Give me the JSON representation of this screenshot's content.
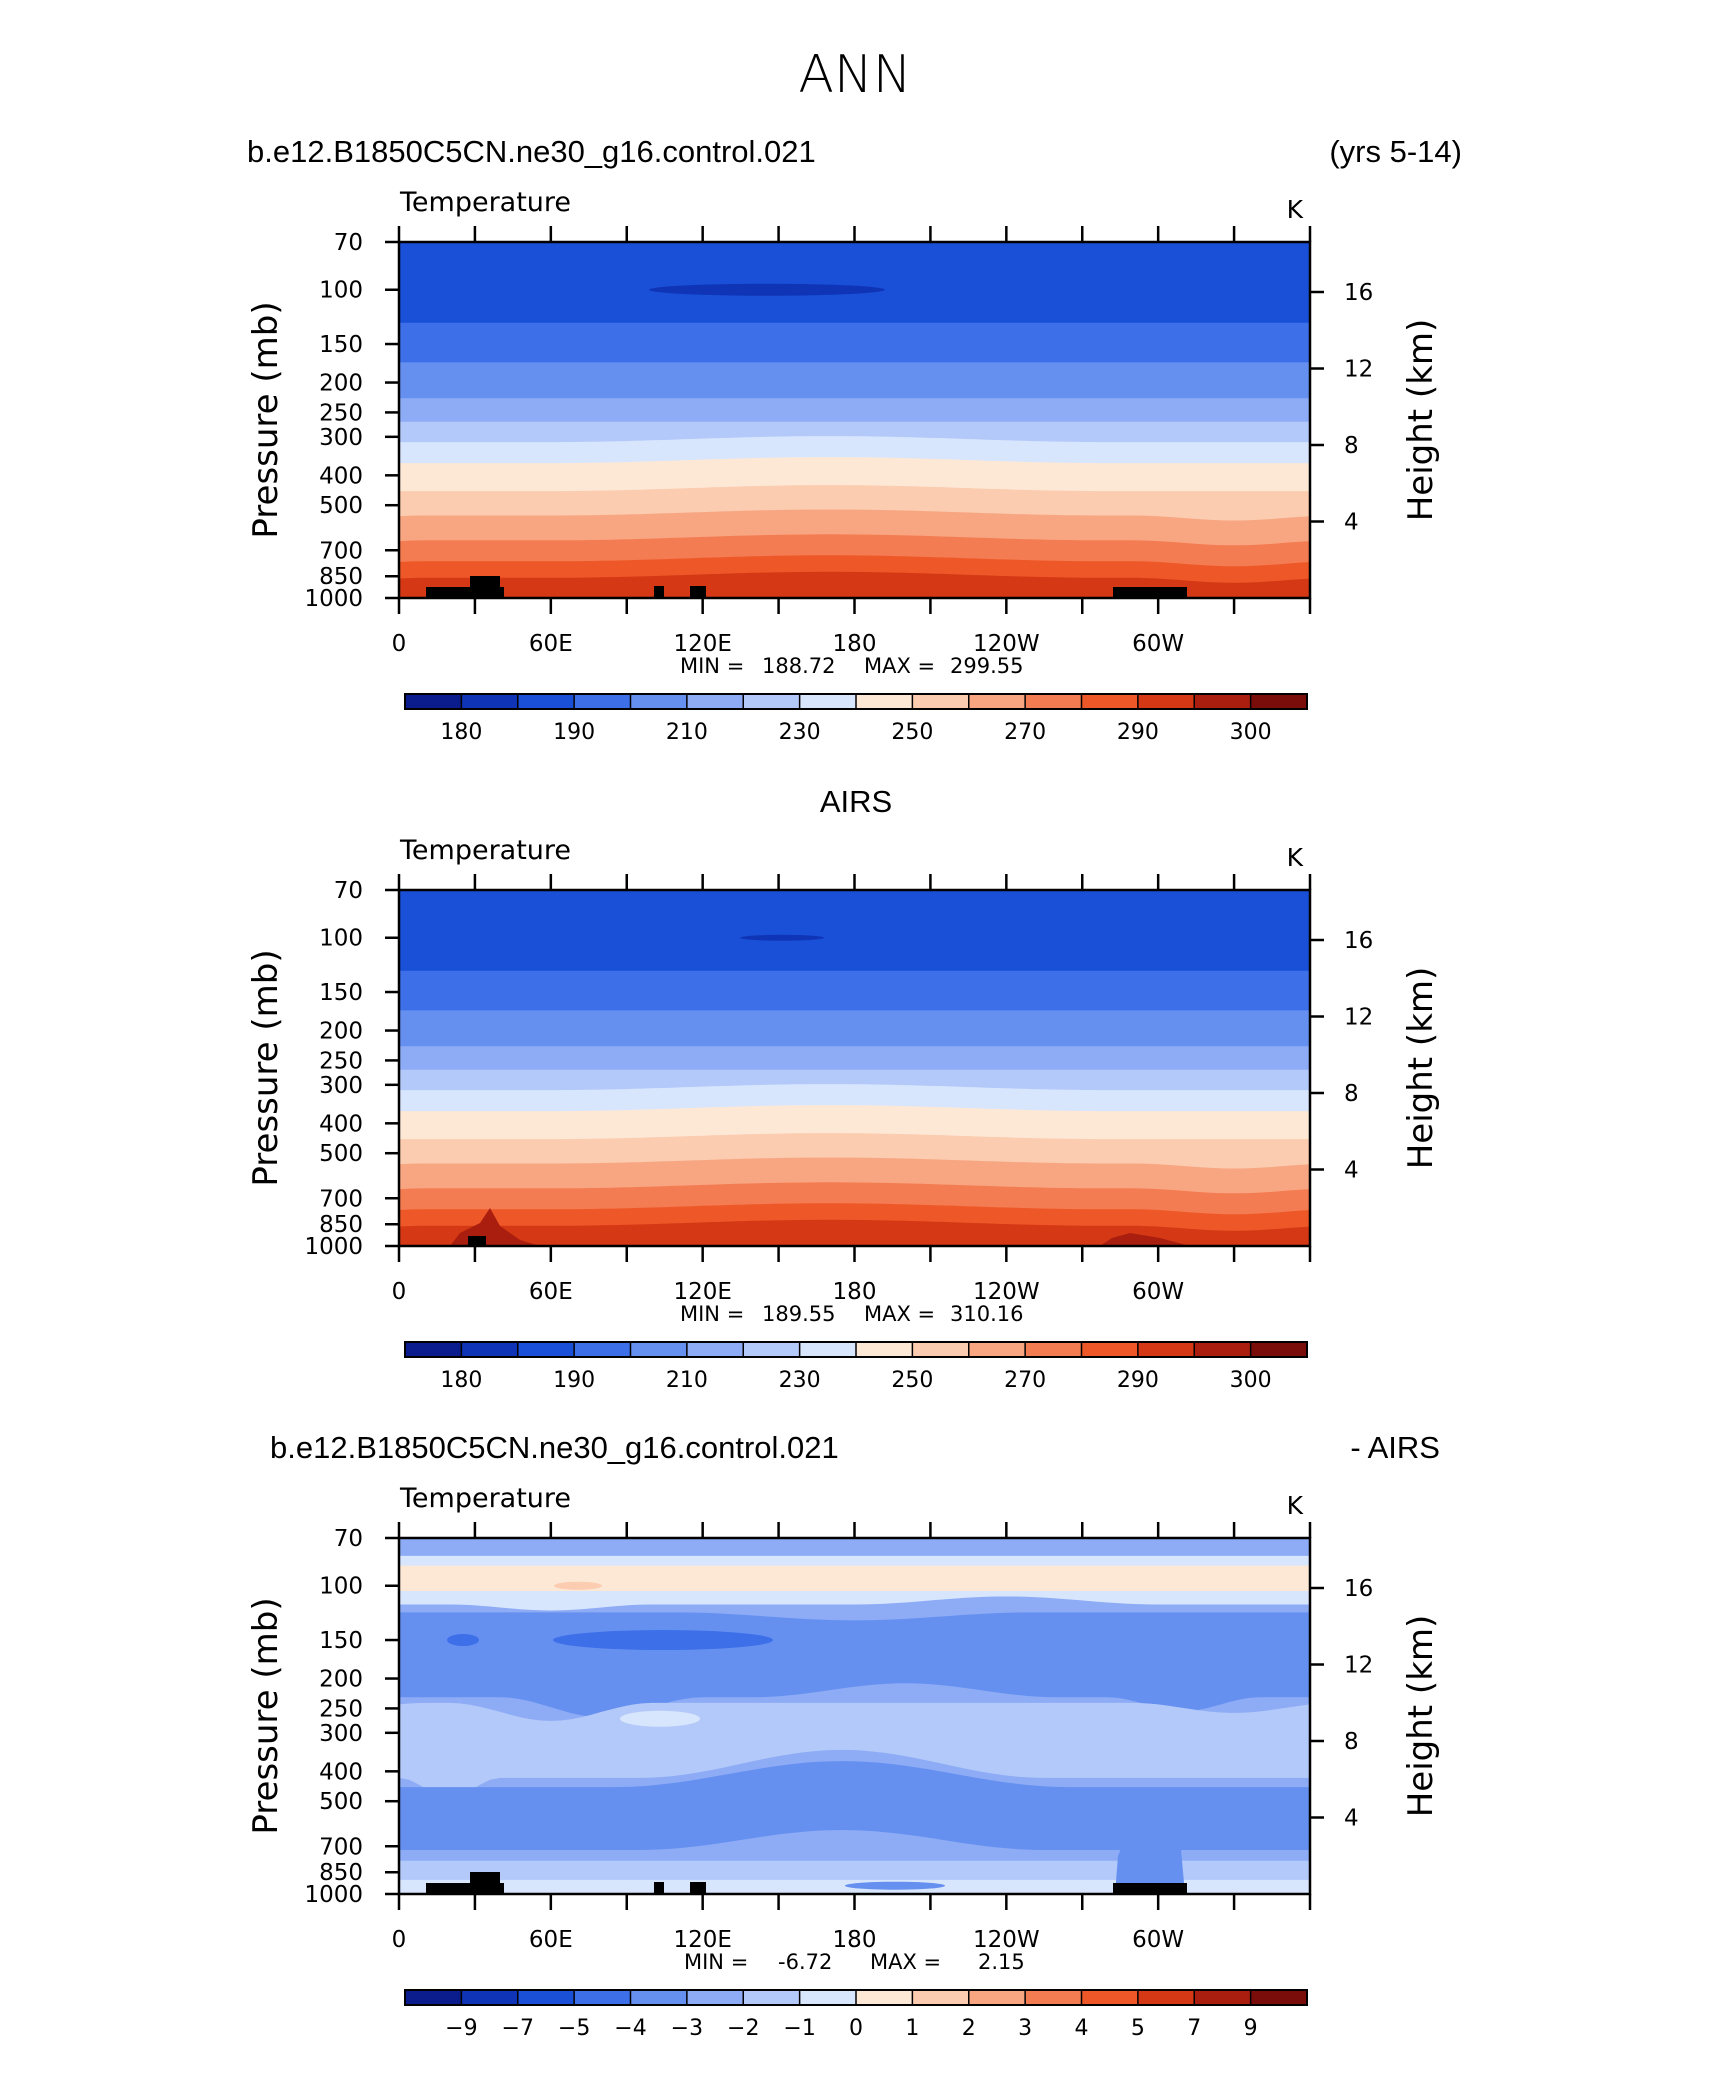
{
  "page_title": "ANN",
  "chart_data": [
    {
      "type": "contour",
      "left_title": "b.e12.B1850C5CN.ne30_g16.control.021",
      "right_title": "(yrs 5-14)",
      "variable": "Temperature",
      "units": "K",
      "ylabel": "Pressure  (mb)",
      "y2label": "Height  (km)",
      "ylim": [
        1000,
        70
      ],
      "pressure_ticks": [
        "70",
        "100",
        "150",
        "200",
        "250",
        "300",
        "400",
        "500",
        "700",
        "850",
        "1000"
      ],
      "height_ticks": [
        "16",
        "12",
        "8",
        "4"
      ],
      "xlim": [
        0,
        360
      ],
      "x_ticks": [
        "0",
        "60E",
        "120E",
        "180",
        "120W",
        "60W"
      ],
      "min_label": "MIN =",
      "min_value": "188.72",
      "max_label": "MAX =",
      "max_value": "299.55",
      "colorbar_labels": [
        "180",
        "190",
        "210",
        "230",
        "250",
        "270",
        "290",
        "300"
      ]
    },
    {
      "type": "contour",
      "center_title": "AIRS",
      "variable": "Temperature",
      "units": "K",
      "ylabel": "Pressure  (mb)",
      "y2label": "Height  (km)",
      "ylim": [
        1000,
        70
      ],
      "pressure_ticks": [
        "70",
        "100",
        "150",
        "200",
        "250",
        "300",
        "400",
        "500",
        "700",
        "850",
        "1000"
      ],
      "height_ticks": [
        "16",
        "12",
        "8",
        "4"
      ],
      "xlim": [
        0,
        360
      ],
      "x_ticks": [
        "0",
        "60E",
        "120E",
        "180",
        "120W",
        "60W"
      ],
      "min_label": "MIN =",
      "min_value": "189.55",
      "max_label": "MAX =",
      "max_value": "310.16",
      "colorbar_labels": [
        "180",
        "190",
        "210",
        "230",
        "250",
        "270",
        "290",
        "300"
      ]
    },
    {
      "type": "contour",
      "left_title": "b.e12.B1850C5CN.ne30_g16.control.021",
      "right_title": "- AIRS",
      "variable": "Temperature",
      "units": "K",
      "ylabel": "Pressure  (mb)",
      "y2label": "Height  (km)",
      "ylim": [
        1000,
        70
      ],
      "pressure_ticks": [
        "70",
        "100",
        "150",
        "200",
        "250",
        "300",
        "400",
        "500",
        "700",
        "850",
        "1000"
      ],
      "height_ticks": [
        "16",
        "12",
        "8",
        "4"
      ],
      "xlim": [
        0,
        360
      ],
      "x_ticks": [
        "0",
        "60E",
        "120E",
        "180",
        "120W",
        "60W"
      ],
      "min_label": "MIN =",
      "min_value": "-6.72",
      "max_label": "MAX =",
      "max_value": "2.15",
      "colorbar_labels": [
        "−9",
        "−7",
        "−5",
        "−4",
        "−3",
        "−2",
        "−1",
        "0",
        "1",
        "2",
        "3",
        "4",
        "5",
        "7",
        "9"
      ]
    }
  ],
  "palette": [
    "#0b1c8c",
    "#0f35b6",
    "#1a4fd8",
    "#3c6fe8",
    "#6690f0",
    "#8eacf5",
    "#b3c9f9",
    "#d8e6fd",
    "#fde8d6",
    "#fbccb0",
    "#f8a682",
    "#f47c52",
    "#ee5828",
    "#d53814",
    "#a91e0e",
    "#7a0d09"
  ]
}
